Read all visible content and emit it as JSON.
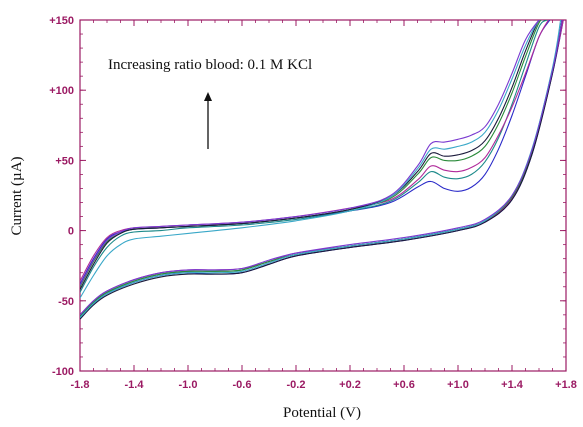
{
  "chart_data": {
    "type": "line",
    "title": "",
    "xlabel": "Potential (V)",
    "ylabel": "Current (µA)",
    "xlim": [
      -1.8,
      1.8
    ],
    "ylim": [
      -100,
      150
    ],
    "x_ticks": [
      -1.8,
      -1.4,
      -1.0,
      -0.6,
      -0.2,
      0.2,
      0.6,
      1.0,
      1.4,
      1.8
    ],
    "x_tick_labels": [
      "-1.8",
      "-1.4",
      "-1.0",
      "-0.6",
      "-0.2",
      "+0.2",
      "+0.6",
      "+1.0",
      "+1.4",
      "+1.8"
    ],
    "y_ticks": [
      -100,
      -50,
      0,
      50,
      100,
      150
    ],
    "y_tick_labels": [
      "-100",
      "-50",
      "0",
      "+50",
      "+100",
      "+150"
    ],
    "grid": false,
    "annotation": "Increasing ratio blood: 0.1 M KCl",
    "series": [
      {
        "color": "#2a2ac8",
        "upper": {
          "x": [
            -1.8,
            -1.7,
            -1.6,
            -1.5,
            -1.4,
            -1.2,
            -1.0,
            -0.6,
            -0.2,
            0.2,
            0.5,
            0.7,
            0.8,
            0.9,
            1.0,
            1.1,
            1.2,
            1.3,
            1.4,
            1.5,
            1.6,
            1.68
          ],
          "y": [
            -38,
            -20,
            -6,
            -1,
            1,
            2,
            3,
            5,
            9,
            14,
            20,
            31,
            35,
            30,
            28,
            31,
            40,
            58,
            82,
            110,
            138,
            150
          ]
        },
        "lower": {
          "x": [
            -1.8,
            -1.7,
            -1.6,
            -1.4,
            -1.2,
            -1.0,
            -0.8,
            -0.6,
            -0.4,
            -0.2,
            0.2,
            0.6,
            1.0,
            1.2,
            1.4,
            1.55,
            1.7,
            1.78
          ],
          "y": [
            -62,
            -52,
            -45,
            -37,
            -32,
            -30,
            -31,
            -30,
            -24,
            -18,
            -12,
            -7,
            0,
            6,
            22,
            55,
            112,
            150
          ]
        }
      },
      {
        "color": "#1c8a8a",
        "upper": {
          "x": [
            -1.8,
            -1.7,
            -1.6,
            -1.5,
            -1.4,
            -1.2,
            -1.0,
            -0.6,
            -0.2,
            0.2,
            0.5,
            0.7,
            0.8,
            0.9,
            1.0,
            1.1,
            1.2,
            1.3,
            1.4,
            1.5,
            1.6,
            1.66
          ],
          "y": [
            -44,
            -26,
            -12,
            -4,
            -1,
            0,
            2,
            4,
            8,
            14,
            21,
            34,
            42,
            38,
            37,
            40,
            49,
            66,
            90,
            118,
            145,
            150
          ]
        },
        "lower": {
          "x": [
            -1.8,
            -1.7,
            -1.6,
            -1.4,
            -1.2,
            -1.0,
            -0.8,
            -0.6,
            -0.4,
            -0.2,
            0.2,
            0.6,
            1.0,
            1.2,
            1.4,
            1.55,
            1.7,
            1.77
          ],
          "y": [
            -61,
            -51,
            -44,
            -36,
            -31,
            -29,
            -29,
            -28,
            -22,
            -17,
            -11,
            -6,
            1,
            7,
            24,
            58,
            115,
            150
          ]
        }
      },
      {
        "color": "#b02a9a",
        "upper": {
          "x": [
            -1.8,
            -1.7,
            -1.6,
            -1.5,
            -1.4,
            -1.2,
            -1.0,
            -0.6,
            -0.2,
            0.2,
            0.5,
            0.7,
            0.8,
            0.9,
            1.0,
            1.1,
            1.2,
            1.3,
            1.4,
            1.5,
            1.6,
            1.67
          ],
          "y": [
            -36,
            -18,
            -5,
            0,
            2,
            3,
            4,
            6,
            10,
            16,
            22,
            36,
            46,
            43,
            42,
            45,
            52,
            68,
            88,
            112,
            138,
            150
          ]
        },
        "lower": {
          "x": [
            -1.8,
            -1.7,
            -1.6,
            -1.4,
            -1.2,
            -1.0,
            -0.8,
            -0.6,
            -0.4,
            -0.2,
            0.2,
            0.6,
            1.0,
            1.2,
            1.4,
            1.55,
            1.7,
            1.78
          ],
          "y": [
            -60,
            -50,
            -43,
            -35,
            -30,
            -28,
            -28,
            -27,
            -22,
            -16,
            -11,
            -6,
            1,
            6,
            23,
            56,
            113,
            150
          ]
        }
      },
      {
        "color": "#2a8a3a",
        "upper": {
          "x": [
            -1.8,
            -1.7,
            -1.6,
            -1.5,
            -1.4,
            -1.2,
            -1.0,
            -0.6,
            -0.2,
            0.2,
            0.5,
            0.7,
            0.8,
            0.9,
            1.0,
            1.1,
            1.2,
            1.3,
            1.4,
            1.5,
            1.6,
            1.65
          ],
          "y": [
            -40,
            -22,
            -8,
            -2,
            1,
            2,
            3,
            5,
            9,
            15,
            23,
            40,
            52,
            50,
            50,
            53,
            60,
            76,
            98,
            124,
            148,
            150
          ]
        },
        "lower": {
          "x": [
            -1.8,
            -1.7,
            -1.6,
            -1.4,
            -1.2,
            -1.0,
            -0.8,
            -0.6,
            -0.4,
            -0.2,
            0.2,
            0.6,
            1.0,
            1.2,
            1.4,
            1.55,
            1.7,
            1.77
          ],
          "y": [
            -61,
            -51,
            -44,
            -36,
            -31,
            -29,
            -29,
            -28,
            -22,
            -17,
            -11,
            -6,
            1,
            7,
            24,
            57,
            114,
            150
          ]
        }
      },
      {
        "color": "#1a1a3a",
        "upper": {
          "x": [
            -1.8,
            -1.7,
            -1.6,
            -1.5,
            -1.4,
            -1.2,
            -1.0,
            -0.6,
            -0.2,
            0.2,
            0.5,
            0.7,
            0.8,
            0.9,
            1.0,
            1.1,
            1.2,
            1.3,
            1.4,
            1.5,
            1.6,
            1.64
          ],
          "y": [
            -42,
            -24,
            -9,
            -2,
            1,
            2,
            3,
            5,
            9,
            15,
            24,
            42,
            55,
            53,
            54,
            57,
            64,
            80,
            102,
            128,
            150,
            150
          ]
        },
        "lower": {
          "x": [
            -1.8,
            -1.7,
            -1.6,
            -1.4,
            -1.2,
            -1.0,
            -0.8,
            -0.6,
            -0.4,
            -0.2,
            0.2,
            0.6,
            1.0,
            1.2,
            1.4,
            1.55,
            1.7,
            1.77
          ],
          "y": [
            -63,
            -53,
            -46,
            -38,
            -33,
            -31,
            -31,
            -30,
            -24,
            -18,
            -12,
            -7,
            0,
            6,
            22,
            55,
            112,
            150
          ]
        }
      },
      {
        "color": "#3aa8c8",
        "upper": {
          "x": [
            -1.8,
            -1.7,
            -1.6,
            -1.5,
            -1.4,
            -1.2,
            -1.0,
            -0.6,
            -0.2,
            0.2,
            0.5,
            0.7,
            0.8,
            0.9,
            1.0,
            1.1,
            1.2,
            1.3,
            1.4,
            1.5,
            1.6,
            1.63
          ],
          "y": [
            -48,
            -32,
            -18,
            -10,
            -6,
            -4,
            -2,
            2,
            7,
            14,
            24,
            44,
            58,
            58,
            60,
            63,
            70,
            86,
            108,
            132,
            150,
            150
          ]
        },
        "lower": {
          "x": [
            -1.8,
            -1.7,
            -1.6,
            -1.4,
            -1.2,
            -1.0,
            -0.8,
            -0.6,
            -0.4,
            -0.2,
            0.2,
            0.6,
            1.0,
            1.2,
            1.4,
            1.55,
            1.7,
            1.76
          ],
          "y": [
            -62,
            -52,
            -45,
            -37,
            -32,
            -30,
            -30,
            -29,
            -23,
            -17,
            -11,
            -6,
            1,
            7,
            25,
            59,
            116,
            150
          ]
        }
      },
      {
        "color": "#7a3ad0",
        "upper": {
          "x": [
            -1.8,
            -1.7,
            -1.6,
            -1.5,
            -1.4,
            -1.2,
            -1.0,
            -0.6,
            -0.2,
            0.2,
            0.5,
            0.7,
            0.8,
            0.9,
            1.0,
            1.1,
            1.2,
            1.3,
            1.4,
            1.5,
            1.6,
            1.62
          ],
          "y": [
            -39,
            -21,
            -7,
            -1,
            2,
            3,
            4,
            6,
            10,
            16,
            25,
            46,
            62,
            63,
            65,
            68,
            74,
            90,
            112,
            136,
            150,
            150
          ]
        },
        "lower": {
          "x": [
            -1.8,
            -1.7,
            -1.6,
            -1.4,
            -1.2,
            -1.0,
            -0.8,
            -0.6,
            -0.4,
            -0.2,
            0.2,
            0.6,
            1.0,
            1.2,
            1.4,
            1.55,
            1.7,
            1.77
          ],
          "y": [
            -60,
            -50,
            -43,
            -35,
            -30,
            -28,
            -28,
            -27,
            -21,
            -16,
            -10,
            -5,
            2,
            8,
            25,
            58,
            114,
            150
          ]
        }
      }
    ]
  }
}
